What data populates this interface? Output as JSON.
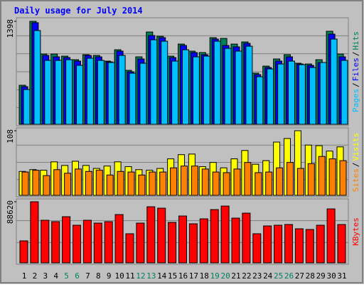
{
  "title": "Daily usage for July 2014",
  "categories": [
    "1",
    "2",
    "3",
    "4",
    "5",
    "6",
    "7",
    "8",
    "9",
    "10",
    "11",
    "12",
    "13",
    "14",
    "15",
    "16",
    "17",
    "18",
    "19",
    "20",
    "21",
    "22",
    "23",
    "24",
    "25",
    "26",
    "27",
    "28",
    "29",
    "30",
    "31"
  ],
  "category_colors": [
    "#000000",
    "#000000",
    "#000000",
    "#000000",
    "#00805c",
    "#00805c",
    "#000000",
    "#000000",
    "#000000",
    "#000000",
    "#000000",
    "#00805c",
    "#00805c",
    "#000000",
    "#000000",
    "#000000",
    "#000000",
    "#000000",
    "#00805c",
    "#00805c",
    "#000000",
    "#000000",
    "#000000",
    "#000000",
    "#00805c",
    "#00805c",
    "#000000",
    "#000000",
    "#000000",
    "#000000",
    "#000000"
  ],
  "legend_separator": "/",
  "chart_data": [
    {
      "type": "bar",
      "ylim": [
        0,
        1398
      ],
      "yticks": [
        1398
      ],
      "legend_order": [
        2,
        1,
        0
      ],
      "series": [
        {
          "name": "Hits",
          "color": "#00805c",
          "values": [
            530,
            1398,
            954,
            954,
            925,
            877,
            945,
            935,
            858,
            1012,
            733,
            916,
            1253,
            1195,
            925,
            1089,
            993,
            974,
            1176,
            1166,
            1089,
            1118,
            694,
            790,
            887,
            945,
            829,
            819,
            877,
            1263,
            954
          ]
        },
        {
          "name": "Files",
          "color": "#0000ff",
          "values": [
            511,
            1379,
            935,
            916,
            906,
            858,
            935,
            916,
            848,
            993,
            713,
            887,
            1205,
            1176,
            906,
            1070,
            974,
            945,
            1157,
            1070,
            1051,
            1099,
            675,
            771,
            858,
            916,
            819,
            800,
            839,
            1224,
            916
          ]
        },
        {
          "name": "Pages",
          "color": "#00c0ff",
          "values": [
            472,
            1273,
            868,
            868,
            877,
            800,
            897,
            868,
            839,
            935,
            694,
            829,
            1147,
            1128,
            858,
            1012,
            916,
            926,
            1128,
            1031,
            993,
            1060,
            646,
            752,
            819,
            858,
            810,
            771,
            839,
            1157,
            868
          ]
        }
      ]
    },
    {
      "type": "bar",
      "ylim": [
        0,
        108
      ],
      "yticks": [
        108
      ],
      "legend_order": [
        1,
        0
      ],
      "series": [
        {
          "name": "Visits",
          "color": "#ffff00",
          "values": [
            40,
            43,
            42,
            56,
            50,
            57,
            50,
            45,
            49,
            56,
            48,
            43,
            42,
            45,
            61,
            68,
            69,
            48,
            55,
            46,
            61,
            75,
            52,
            58,
            89,
            95,
            108,
            84,
            83,
            74,
            81
          ]
        },
        {
          "name": "Sites",
          "color": "#ff8000",
          "values": [
            39,
            42,
            33,
            43,
            37,
            44,
            40,
            42,
            34,
            40,
            39,
            34,
            39,
            39,
            46,
            49,
            49,
            44,
            39,
            38,
            44,
            55,
            38,
            39,
            46,
            55,
            45,
            53,
            65,
            61,
            58
          ]
        }
      ]
    },
    {
      "type": "bar",
      "ylim": [
        0,
        88620
      ],
      "yticks": [
        88620
      ],
      "legend_order": [
        0
      ],
      "series": [
        {
          "name": "KBytes",
          "color": "#ff0000",
          "values": [
            31930,
            88620,
            61800,
            59740,
            66950,
            54590,
            61800,
            57680,
            59740,
            70040,
            42230,
            57680,
            81370,
            79310,
            58710,
            67980,
            56650,
            63860,
            77250,
            82400,
            64890,
            72100,
            42230,
            53560,
            54590,
            55620,
            49440,
            48410,
            54590,
            78280,
            55620
          ]
        }
      ]
    }
  ]
}
